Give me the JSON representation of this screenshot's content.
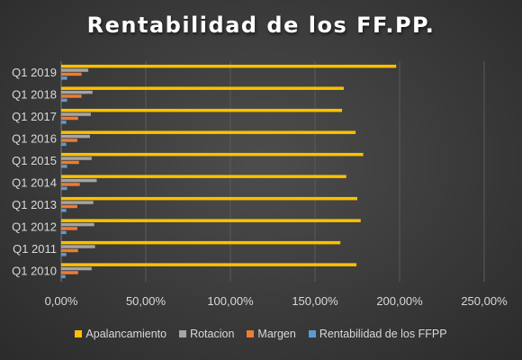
{
  "chart_data": {
    "type": "bar",
    "orientation": "horizontal",
    "title": "Rentabilidad de los FF.PP.",
    "categories": [
      "Q1 2010",
      "Q1 2011",
      "Q1 2012",
      "Q1 2013",
      "Q1 2014",
      "Q1 2015",
      "Q1 2016",
      "Q1 2017",
      "Q1 2018",
      "Q1 2019"
    ],
    "series": [
      {
        "name": "Apalancamiento",
        "color": "#ffc000",
        "values": [
          174.5,
          165.0,
          177.0,
          175.0,
          168.5,
          178.5,
          174.0,
          166.0,
          167.0,
          198.0
        ]
      },
      {
        "name": "Rotacion",
        "color": "#a5a5a5",
        "values": [
          18.0,
          20.0,
          19.5,
          19.0,
          21.0,
          18.0,
          17.0,
          17.5,
          18.5,
          16.0
        ]
      },
      {
        "name": "Margen",
        "color": "#ed7d31",
        "values": [
          10.0,
          10.0,
          9.5,
          9.5,
          11.0,
          10.5,
          9.5,
          10.0,
          12.0,
          12.0
        ]
      },
      {
        "name": "Rentabilidad de los FFPP",
        "color": "#5b9bd5",
        "values": [
          2.5,
          3.0,
          3.0,
          3.0,
          3.5,
          3.5,
          3.0,
          3.0,
          3.5,
          3.5
        ]
      }
    ],
    "xlim": [
      0,
      250
    ],
    "x_ticks": [
      "0,00%",
      "50,00%",
      "100,00%",
      "150,00%",
      "200,00%",
      "250,00%"
    ],
    "x_tick_values": [
      0,
      50,
      100,
      150,
      200,
      250
    ],
    "grid": "vertical",
    "legend_position": "bottom"
  }
}
